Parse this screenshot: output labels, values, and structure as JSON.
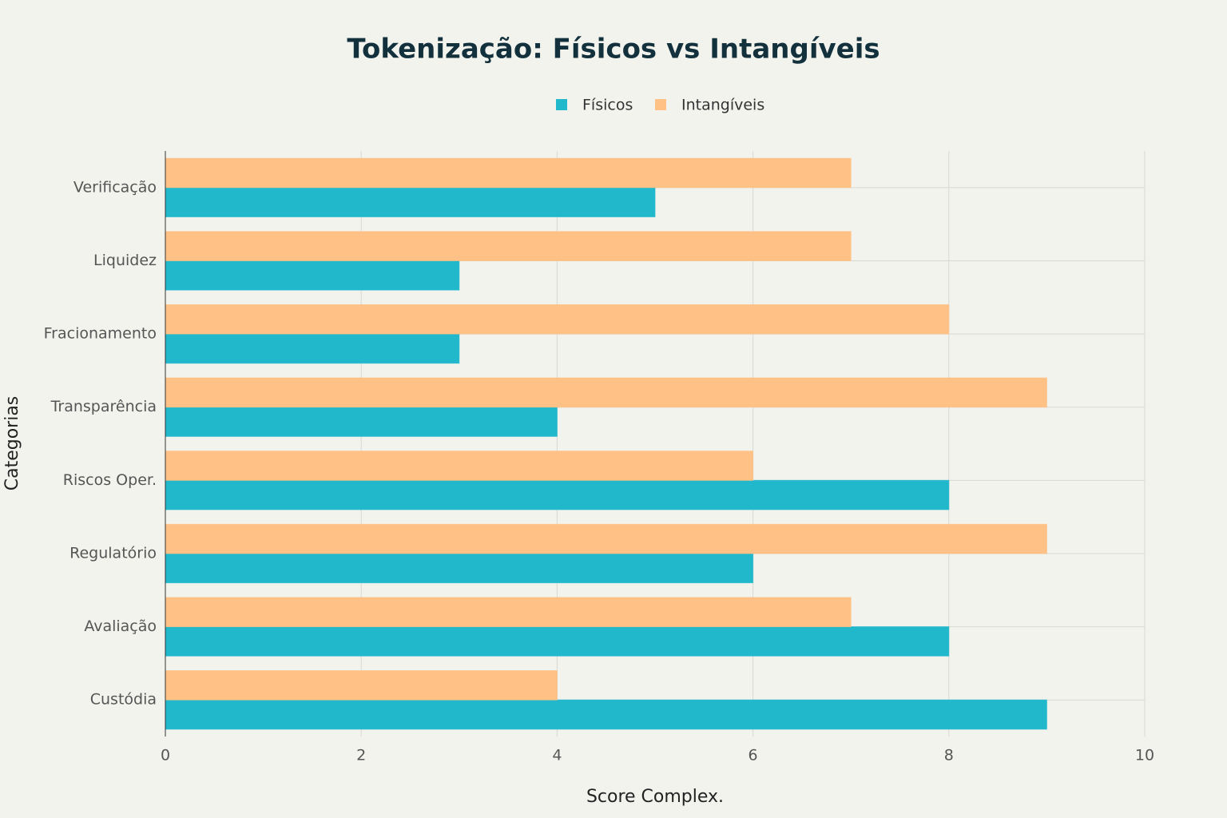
{
  "chart_data": {
    "type": "hbar",
    "title": "Tokenização: Físicos vs Intangíveis",
    "xlabel": "Score Complex.",
    "ylabel": "Categorias",
    "categories": [
      "Custódia",
      "Avaliação",
      "Regulatório",
      "Riscos Oper.",
      "Transparência",
      "Fracionamento",
      "Liquidez",
      "Verificação"
    ],
    "series": [
      {
        "name": "Físicos",
        "color": "#21b8cc",
        "values": [
          9,
          8,
          6,
          8,
          4,
          3,
          3,
          5
        ]
      },
      {
        "name": "Intangíveis",
        "color": "#ffc185",
        "values": [
          4,
          7,
          9,
          6,
          9,
          8,
          7,
          7
        ]
      }
    ],
    "xlim": [
      0,
      10
    ],
    "xticks": [
      0,
      2,
      4,
      6,
      8,
      10
    ],
    "grid": true
  }
}
